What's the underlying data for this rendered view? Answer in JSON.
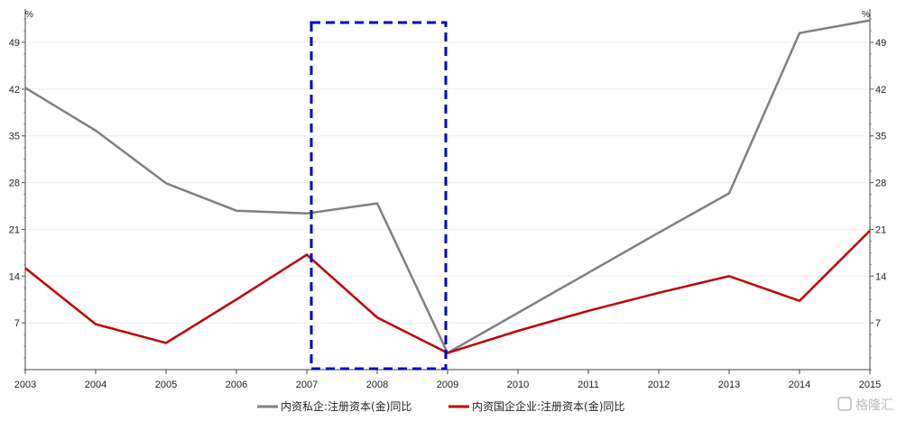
{
  "chart_data": {
    "type": "line",
    "y_unit_left": "%",
    "y_unit_right": "%",
    "x": [
      "2003",
      "2004",
      "2005",
      "2006",
      "2007",
      "2008",
      "2009",
      "2010",
      "2011",
      "2012",
      "2013",
      "2014",
      "2015"
    ],
    "yticks": [
      7,
      14,
      21,
      28,
      35,
      42,
      49
    ],
    "ylim": [
      0,
      54
    ],
    "grid": true,
    "legend_position": "bottom",
    "series": [
      {
        "name": "内资私企:注册资本(金)同比",
        "color": "#808080",
        "values": [
          42.2,
          35.8,
          27.9,
          23.8,
          23.4,
          24.9,
          2.5,
          8.5,
          14.5,
          20.5,
          26.4,
          50.4,
          52.3
        ]
      },
      {
        "name": "内资国企企业:注册资本(金)同比",
        "color": "#c00000",
        "values": [
          15.2,
          6.8,
          4.0,
          10.5,
          17.2,
          7.8,
          2.5,
          5.8,
          8.8,
          11.5,
          14.0,
          10.3,
          20.8
        ]
      }
    ],
    "highlight_box": {
      "x_from": "2007",
      "x_to": "2009",
      "color": "#0000cc"
    }
  },
  "watermark_text": "格隆汇"
}
